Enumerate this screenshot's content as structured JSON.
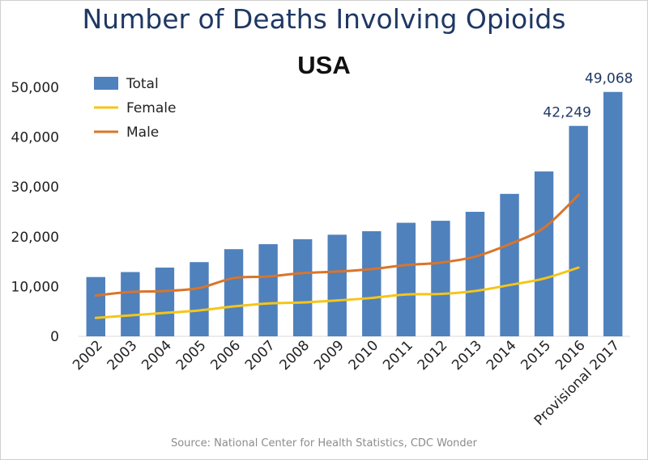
{
  "chart_data": {
    "type": "bar",
    "title": "Number of Deaths Involving Opioids",
    "subtitle": "USA",
    "source": "Source: National Center for Health Statistics, CDC Wonder",
    "categories": [
      "2002",
      "2003",
      "2004",
      "2005",
      "2006",
      "2007",
      "2008",
      "2009",
      "2010",
      "2011",
      "2012",
      "2013",
      "2014",
      "2015",
      "2016",
      "Provisional 2017"
    ],
    "ylim": [
      0,
      50000
    ],
    "yticks": [
      0,
      10000,
      20000,
      30000,
      40000,
      50000
    ],
    "ytick_labels": [
      "0",
      "10,000",
      "20,000",
      "30,000",
      "40,000",
      "50,000"
    ],
    "grid": false,
    "legend_position": "top-left",
    "series": [
      {
        "name": "Total",
        "kind": "bar",
        "color": "#4f81bd",
        "values": [
          11900,
          12900,
          13800,
          14900,
          17500,
          18500,
          19500,
          20400,
          21100,
          22800,
          23200,
          25000,
          28600,
          33100,
          42249,
          49068
        ]
      },
      {
        "name": "Female",
        "kind": "line",
        "color": "#f5c518",
        "values": [
          3700,
          4200,
          4700,
          5200,
          6000,
          6600,
          6800,
          7200,
          7700,
          8400,
          8500,
          9100,
          10300,
          11600,
          13800,
          null
        ]
      },
      {
        "name": "Male",
        "kind": "line",
        "color": "#d9752a",
        "values": [
          8200,
          8900,
          9100,
          9700,
          11700,
          12000,
          12700,
          13000,
          13500,
          14300,
          14800,
          16000,
          18500,
          21800,
          28400,
          null
        ]
      }
    ],
    "data_labels": [
      {
        "category": "2016",
        "text": "42,249"
      },
      {
        "category": "Provisional 2017",
        "text": "49,068"
      }
    ]
  }
}
